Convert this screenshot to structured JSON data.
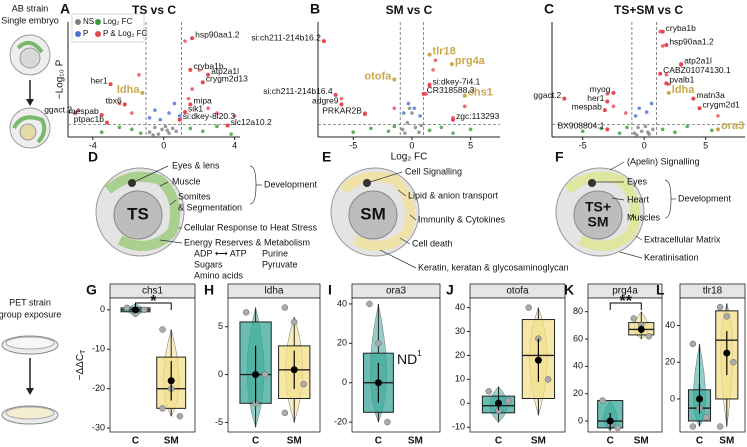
{
  "left_top": {
    "strain": "AB strain",
    "sub": "Single embryo"
  },
  "left_bottom": {
    "strain": "PET strain",
    "sub": "group exposure"
  },
  "diagrams": [
    {
      "panel": "D",
      "center": [
        "TS"
      ],
      "lines": [
        "Eyes & lens",
        "Muscle",
        "Somites",
        "& Segmentation",
        "Cellular Response to Heat Stress",
        "Energy Reserves & Metabolism",
        "ADP ⟷ ATP",
        "Purine",
        "Sugars",
        "Pyruvate",
        "Amino acids"
      ],
      "group": "Development"
    },
    {
      "panel": "E",
      "center": [
        "SM"
      ],
      "lines": [
        "Cell Signalling",
        "Lipid & anion transport",
        "Immunity & Cytokines",
        "Cell death",
        "Keratin, keratan & glycosaminoglycan"
      ]
    },
    {
      "panel": "F",
      "center": [
        "TS+",
        "SM"
      ],
      "lines": [
        "(Apelin) Signalling",
        "Eyes",
        "Heart",
        "Muscles",
        "Extracellular Matrix",
        "Keratinisation"
      ],
      "group": "Development"
    }
  ],
  "chart_data": [
    {
      "type": "volcano",
      "panel": "A",
      "title": "TS vs C",
      "ylabel": "−Log₁₀ P",
      "xlim": [
        -5.4,
        4.3
      ],
      "ylim": [
        0,
        12
      ],
      "xticks": [
        -4,
        0,
        4
      ],
      "thresholds": {
        "x": [
          -1,
          1
        ],
        "y": 1.3
      },
      "legend": "top-left",
      "series": [
        {
          "name": "NS",
          "color": "#7f7f7f",
          "x": [
            -0.8,
            -0.5,
            -0.3,
            -0.1,
            0.1,
            0.3,
            0.5,
            0.7,
            -0.6,
            0.2
          ],
          "values": [
            0.5,
            1,
            0.3,
            0.8,
            1.1,
            0.4,
            0.9,
            0.6,
            0.2,
            0.7
          ]
        },
        {
          "name": "Log₂ FC",
          "color": "#3a9a3a",
          "x": [
            -3.5,
            -2.5,
            -1.8,
            -1.3,
            1.5,
            2.2,
            3,
            3.8
          ],
          "values": [
            0.5,
            1,
            0.8,
            0.4,
            0.9,
            0.6,
            1.1,
            0.3
          ]
        },
        {
          "name": "P",
          "color": "#4a6fd6",
          "x": [
            -0.8,
            -0.5,
            -0.2,
            0.3,
            0.6,
            0.9
          ],
          "values": [
            2,
            2.8,
            1.8,
            2.5,
            3.5,
            2.2
          ]
        },
        {
          "name": "P & Log₂ FC",
          "color": "#e8464f",
          "x": [
            -4.8,
            -3,
            -2.5,
            -1.8,
            -1.4,
            1.2,
            1.4,
            1.6,
            2,
            2.5,
            3,
            4
          ],
          "values": [
            2.8,
            5.5,
            3.5,
            2.5,
            6.5,
            10,
            4,
            5,
            7,
            3,
            2.5,
            2.2
          ]
        }
      ],
      "labels": [
        {
          "text": "hsp90aa1.2",
          "x": 1.6,
          "y": 10.3
        },
        {
          "text": "her1",
          "x": -3,
          "y": 5.5
        },
        {
          "text": "cryba1b",
          "x": 1.5,
          "y": 7
        },
        {
          "text": "atp2a1l",
          "x": 2.5,
          "y": 6.5
        },
        {
          "text": "crygm2d13",
          "x": 2.2,
          "y": 5.7
        },
        {
          "text": "ldha",
          "x": -1.2,
          "y": 4.6,
          "color": "#c9a84c"
        },
        {
          "text": "tbx6",
          "x": -2.2,
          "y": 3.4
        },
        {
          "text": "ggact.2",
          "x": -5,
          "y": 2.5
        },
        {
          "text": "mespab",
          "x": -3.5,
          "y": 2.3
        },
        {
          "text": "ptpac1b",
          "x": -3.2,
          "y": 1.5
        },
        {
          "text": "mipa",
          "x": 1.5,
          "y": 3.4
        },
        {
          "text": "sik1",
          "x": 1.2,
          "y": 2.6
        },
        {
          "text": "si:dkey-8l20.3",
          "x": 0.9,
          "y": 1.8
        },
        {
          "text": "slc12a10.2",
          "x": 3.6,
          "y": 1.2
        }
      ]
    },
    {
      "type": "volcano",
      "panel": "B",
      "title": "SM vs C",
      "xlabel": "Log₂ FC",
      "xlim": [
        -8,
        7.5
      ],
      "ylim": [
        0,
        12
      ],
      "xticks": [
        -5,
        0,
        5
      ],
      "thresholds": {
        "x": [
          -1,
          1
        ],
        "y": 1.3
      },
      "series": [
        {
          "color": "#7f7f7f",
          "x": [
            -0.8,
            -0.4,
            0,
            0.3,
            0.6,
            -0.2,
            0.8,
            -0.6
          ],
          "values": [
            0.8,
            1.5,
            2.5,
            1,
            0.5,
            3,
            1.2,
            0.4
          ]
        },
        {
          "color": "#3a9a3a",
          "x": [
            -5,
            -3.5,
            -2,
            -1.5,
            1.5,
            2.5,
            3.5,
            5
          ],
          "values": [
            0.5,
            0.9,
            0.6,
            1.1,
            0.7,
            1,
            0.4,
            0.8
          ]
        },
        {
          "color": "#4a6fd6",
          "x": [
            -0.7,
            -0.3,
            0.2,
            0.7
          ],
          "values": [
            2.5,
            3.5,
            3,
            2.2
          ]
        },
        {
          "color": "#e8464f",
          "x": [
            -7.5,
            -6,
            -4,
            -1.5,
            1.2,
            1.5,
            1.8,
            2,
            3.5,
            4.5
          ],
          "values": [
            10,
            4,
            2.5,
            3,
            4.5,
            5.5,
            7,
            8,
            2,
            3.2
          ]
        }
      ],
      "labels": [
        {
          "text": "si:ch211-214b16.2",
          "x": -7.5,
          "y": 10
        },
        {
          "text": "tlr18",
          "x": 1.5,
          "y": 8.6,
          "color": "#c9a84c"
        },
        {
          "text": "prg4a",
          "x": 3.4,
          "y": 7.6,
          "color": "#c9a84c"
        },
        {
          "text": "otofa",
          "x": -1.5,
          "y": 6,
          "color": "#c9a84c"
        },
        {
          "text": "chs1",
          "x": 4.5,
          "y": 4.3,
          "color": "#c9a84c"
        },
        {
          "text": "si:ch211-214b16.4",
          "x": -6.5,
          "y": 4.4
        },
        {
          "text": "adgre9",
          "x": -6,
          "y": 3.4
        },
        {
          "text": "PRKAR2B",
          "x": -4,
          "y": 2.4
        },
        {
          "text": "si:dkey-7i4.1",
          "x": 1.5,
          "y": 5.4
        },
        {
          "text": "CR318588.3",
          "x": 1,
          "y": 4.5
        },
        {
          "text": "zgc:113293",
          "x": 3.5,
          "y": 1.8
        }
      ]
    },
    {
      "type": "volcano",
      "panel": "C",
      "title": "TS+SM vs C",
      "xlim": [
        -7.5,
        8.2
      ],
      "ylim": [
        0,
        12
      ],
      "xticks": [
        -5,
        0,
        5
      ],
      "thresholds": {
        "x": [
          -1,
          1
        ],
        "y": 1.3
      },
      "series": [
        {
          "color": "#7f7f7f",
          "x": [
            -0.8,
            -0.5,
            -0.2,
            0.1,
            0.4,
            0.7,
            -0.6,
            0.3
          ],
          "values": [
            0.4,
            1,
            0.6,
            1.1,
            0.3,
            0.8,
            0.2,
            0.5
          ]
        },
        {
          "color": "#3a9a3a",
          "x": [
            -5,
            -3.5,
            -2,
            -1.4,
            1.5,
            2.5,
            3.5,
            5.5
          ],
          "values": [
            0.6,
            0.9,
            0.4,
            1,
            0.8,
            0.5,
            1.1,
            0.7
          ]
        },
        {
          "color": "#4a6fd6",
          "x": [
            -0.7,
            -0.4,
            0.2,
            0.6
          ],
          "values": [
            2.2,
            3,
            2.6,
            3.5
          ]
        },
        {
          "color": "#e8464f",
          "x": [
            -6.5,
            -3,
            -2.5,
            -1.5,
            1.3,
            1.5,
            1.8,
            2,
            3,
            4,
            4.5,
            6
          ],
          "values": [
            4,
            4.5,
            3.2,
            2.5,
            11,
            9.5,
            6.5,
            5.5,
            7.5,
            4,
            3,
            2.2
          ]
        }
      ],
      "labels": [
        {
          "text": "cryba1b",
          "x": 1.5,
          "y": 11
        },
        {
          "text": "hsp90aa1.2",
          "x": 1.8,
          "y": 9.6
        },
        {
          "text": "atp2a1l",
          "x": 3,
          "y": 7.6
        },
        {
          "text": "CABZ01074130.1",
          "x": 1.3,
          "y": 6.6
        },
        {
          "text": "pvalb1",
          "x": 1.8,
          "y": 5.6
        },
        {
          "text": "ldha",
          "x": 2,
          "y": 4.6,
          "color": "#c9a84c"
        },
        {
          "text": "matn3a",
          "x": 4,
          "y": 4
        },
        {
          "text": "crygm2d1",
          "x": 4.5,
          "y": 3
        },
        {
          "text": "ggact.2",
          "x": -6.5,
          "y": 4
        },
        {
          "text": "myog",
          "x": -2.5,
          "y": 4.6
        },
        {
          "text": "her1",
          "x": -3,
          "y": 3.7
        },
        {
          "text": "mespab",
          "x": -3.2,
          "y": 2.8
        },
        {
          "text": "BX908804.1",
          "x": -3,
          "y": 0.8
        },
        {
          "text": "ora3",
          "x": 6,
          "y": 0.8,
          "color": "#c9a84c"
        }
      ]
    },
    {
      "type": "box",
      "panel": "G",
      "title": "chs1",
      "ylabel": {
        "main": "−ΔΔC",
        "sub": "T"
      },
      "categories": [
        "C",
        "SM"
      ],
      "colors": [
        "#3aa79a",
        "#f3df8a"
      ],
      "ylim": [
        -31,
        3
      ],
      "yticks": [
        0,
        -10,
        -20,
        -30
      ],
      "significance": "*",
      "boxes": [
        {
          "whisker_low": -1.5,
          "q1": -0.5,
          "median": 0,
          "q3": 0.5,
          "whisker_high": 1.5,
          "mean": 0,
          "se": 0.6,
          "points": [
            0.5,
            -1,
            0
          ]
        },
        {
          "whisker_low": -27,
          "q1": -25,
          "median": -20,
          "q3": -12,
          "whisker_high": -5,
          "mean": -18,
          "se": 5,
          "points": [
            -5,
            -20,
            -27,
            -25
          ]
        }
      ]
    },
    {
      "type": "box",
      "panel": "H",
      "title": "ldha",
      "categories": [
        "C",
        "SM"
      ],
      "colors": [
        "#3aa79a",
        "#f3df8a"
      ],
      "ylim": [
        -6,
        8
      ],
      "yticks": [
        5,
        0,
        -5
      ],
      "boxes": [
        {
          "whisker_low": -5.5,
          "q1": -3,
          "median": 0,
          "q3": 5.5,
          "whisker_high": 7,
          "mean": 0,
          "se": 3,
          "points": [
            6.5,
            -3,
            0
          ]
        },
        {
          "whisker_low": -5,
          "q1": -2.5,
          "median": 0.5,
          "q3": 3,
          "whisker_high": 6,
          "mean": 0.5,
          "se": 2,
          "points": [
            7,
            5.5,
            -1,
            -4
          ]
        }
      ]
    },
    {
      "type": "box",
      "panel": "I",
      "title": "ora3",
      "categories": [
        "C",
        "SM"
      ],
      "colors": [
        "#3aa79a",
        "#f3df8a"
      ],
      "ylim": [
        -25,
        43
      ],
      "yticks": [
        40,
        20,
        0,
        -20
      ],
      "note": {
        "main": "ND",
        "sup": "1"
      },
      "boxes": [
        {
          "whisker_low": -20,
          "q1": -15,
          "median": 0,
          "q3": 15,
          "whisker_high": 40,
          "mean": 0,
          "se": 10,
          "points": [
            40,
            20,
            -20
          ]
        },
        null
      ]
    },
    {
      "type": "box",
      "panel": "J",
      "title": "otofa",
      "categories": [
        "C",
        "SM"
      ],
      "colors": [
        "#3aa79a",
        "#f3df8a"
      ],
      "ylim": [
        -12,
        44
      ],
      "yticks": [
        40,
        30,
        20,
        10,
        0,
        -10
      ],
      "boxes": [
        {
          "whisker_low": -8,
          "q1": -4,
          "median": -1,
          "q3": 3,
          "whisker_high": 7,
          "mean": 0,
          "se": 3,
          "points": [
            5,
            -3,
            1
          ]
        },
        {
          "whisker_low": -5,
          "q1": 2,
          "median": 20,
          "q3": 35,
          "whisker_high": 40,
          "mean": 18,
          "se": 9,
          "points": [
            40,
            27,
            10
          ]
        }
      ]
    },
    {
      "type": "box",
      "panel": "K",
      "title": "prg4a",
      "categories": [
        "C",
        "SM"
      ],
      "colors": [
        "#3aa79a",
        "#f3df8a"
      ],
      "ylim": [
        -8,
        90
      ],
      "yticks": [
        80,
        60,
        40,
        20,
        0
      ],
      "significance": "**",
      "boxes": [
        {
          "whisker_low": -7,
          "q1": -5,
          "median": 0,
          "q3": 15,
          "whisker_high": 15,
          "mean": 0,
          "se": 6,
          "points": [
            15,
            -2,
            -5
          ]
        },
        {
          "whisker_low": 60,
          "q1": 63,
          "median": 67,
          "q3": 72,
          "whisker_high": 80,
          "mean": 67,
          "se": 3,
          "points": [
            75,
            70,
            62
          ]
        }
      ]
    },
    {
      "type": "box",
      "panel": "L",
      "title": "tlr18",
      "categories": [
        "C",
        "SM"
      ],
      "colors": [
        "#3aa79a",
        "#f3df8a"
      ],
      "ylim": [
        -18,
        55
      ],
      "yticks": [
        40,
        20,
        0
      ],
      "boxes": [
        {
          "whisker_low": -15,
          "q1": -12,
          "median": -5,
          "q3": 5,
          "whisker_high": 30,
          "mean": 0,
          "se": 8,
          "points": [
            30,
            -5,
            -10,
            -15
          ]
        },
        {
          "whisker_low": -15,
          "q1": 0,
          "median": 32,
          "q3": 48,
          "whisker_high": 52,
          "mean": 25,
          "se": 12,
          "points": [
            50,
            45,
            20,
            -15
          ]
        }
      ]
    }
  ]
}
